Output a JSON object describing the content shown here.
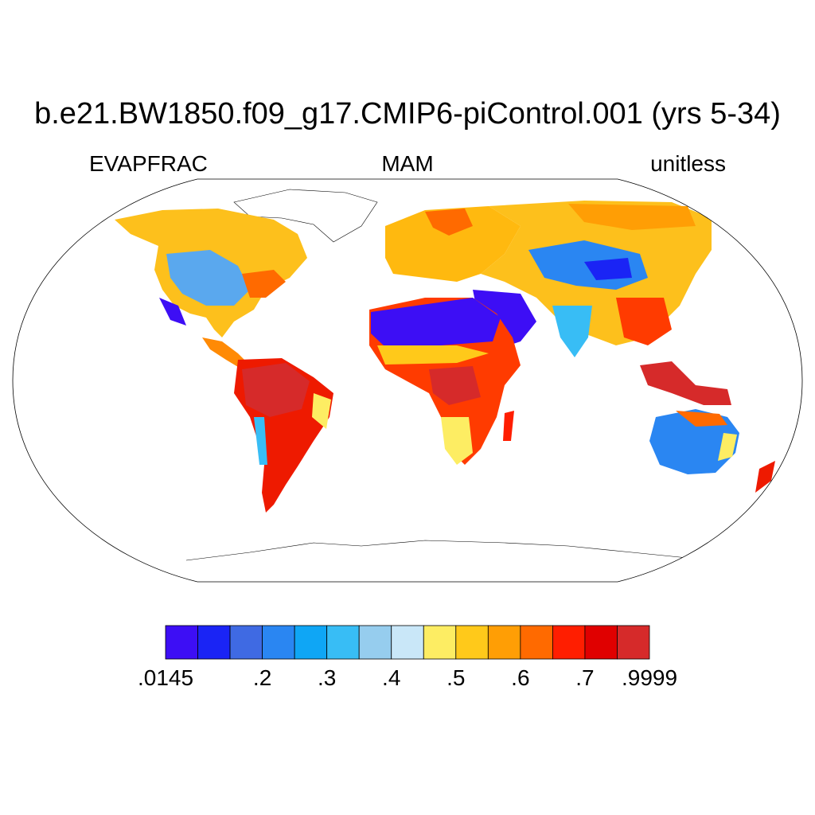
{
  "figure": {
    "title": "b.e21.BW1850.f09_g17.CMIP6-piControl.001 (yrs 5-34)",
    "left_label": "EVAPFRAC",
    "center_label": "MAM",
    "right_label": "unitless"
  },
  "colorbar": {
    "colors": [
      "#3d0ef5",
      "#1a24f5",
      "#3f6ae3",
      "#2a86f2",
      "#0fa6f5",
      "#38bdf5",
      "#96cdee",
      "#c9e7f8",
      "#fded63",
      "#ffc91a",
      "#ff9e05",
      "#ff6a00",
      "#ff1e00",
      "#e00000",
      "#d62a2a"
    ],
    "tick_labels": [
      ".0145",
      ".2",
      ".3",
      ".4",
      ".5",
      ".6",
      ".7",
      ".9999"
    ]
  }
}
